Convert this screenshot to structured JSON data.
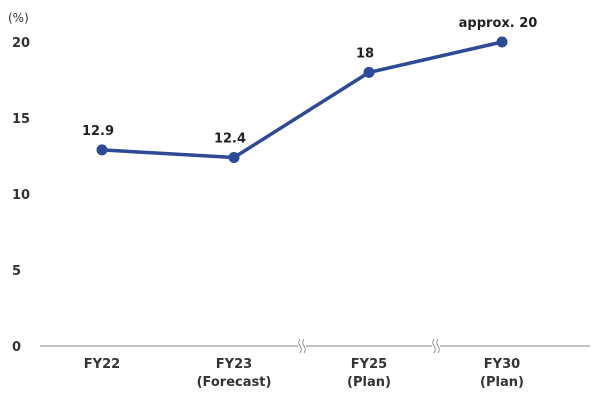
{
  "chart_data": {
    "type": "line",
    "unit": "(%)",
    "categories": [
      {
        "line1": "FY22",
        "line2": ""
      },
      {
        "line1": "FY23",
        "line2": "(Forecast)"
      },
      {
        "line1": "FY25",
        "line2": "(Plan)"
      },
      {
        "line1": "FY30",
        "line2": "(Plan)"
      }
    ],
    "values": [
      12.9,
      12.4,
      18,
      20
    ],
    "data_labels": [
      "12.9",
      "12.4",
      "18",
      "approx. 20"
    ],
    "ylim": [
      0,
      20
    ],
    "yticks": [
      "0",
      "5",
      "10",
      "15",
      "20"
    ],
    "axis_breaks": "between FY23-FY25 and FY25-FY30",
    "grid": false,
    "legend": "none",
    "colors": {
      "line": "#2e4a97",
      "axis": "#8a8a8a",
      "text": "#333333"
    }
  }
}
